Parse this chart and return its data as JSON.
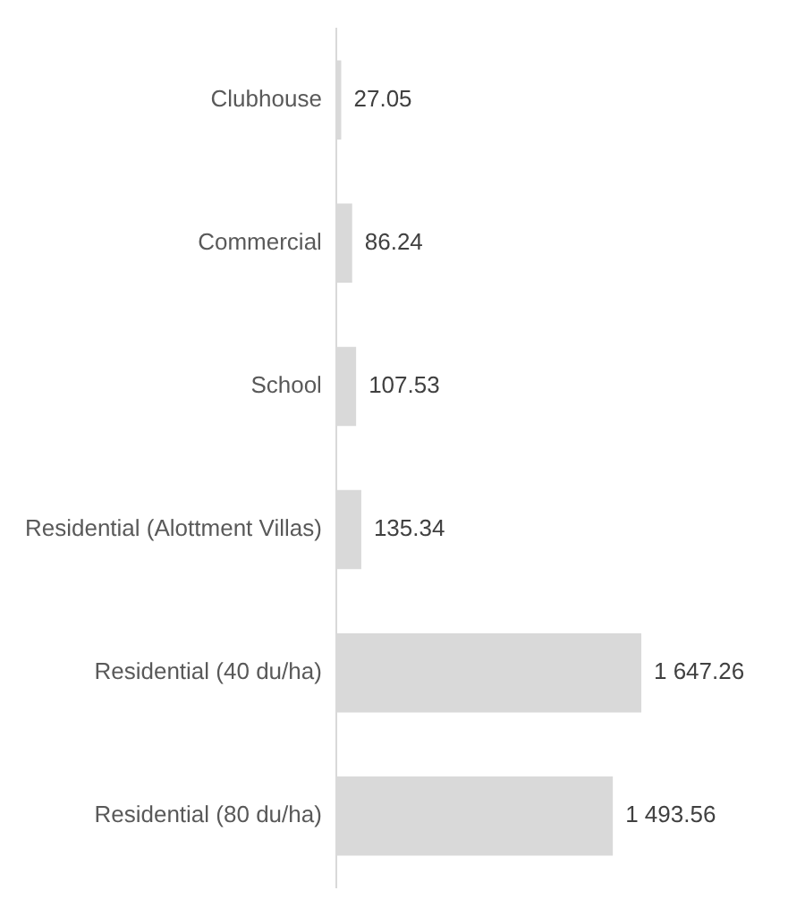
{
  "chart_data": {
    "type": "bar",
    "orientation": "horizontal",
    "categories": [
      "Clubhouse",
      "Commercial",
      "School",
      "Residential (Alottment Villas)",
      "Residential (40 du/ha)",
      "Residential (80 du/ha)"
    ],
    "values": [
      27.05,
      86.24,
      107.53,
      135.34,
      1647.26,
      1493.56
    ],
    "value_labels": [
      "27.05",
      "86.24",
      "107.53",
      "135.34",
      "1 647.26",
      "1 493.56"
    ],
    "color": "#d9d9d9",
    "tick_labels": "y",
    "legend": false
  }
}
